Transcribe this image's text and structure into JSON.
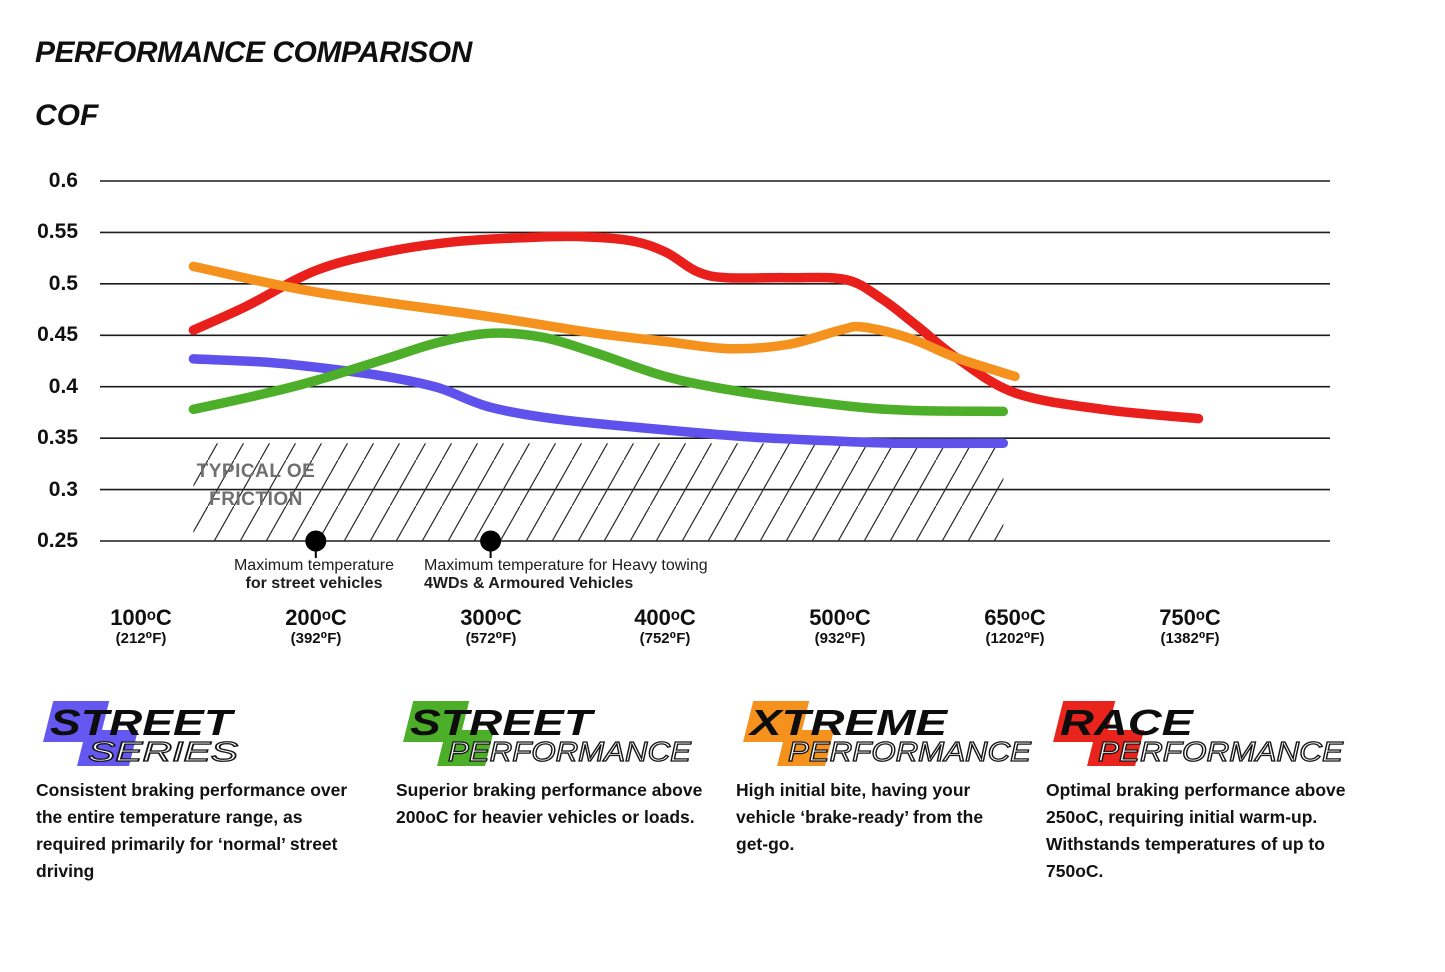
{
  "page": {
    "title": "PERFORMANCE COMPARISON",
    "y_axis_label": "COF"
  },
  "chart_data": {
    "type": "line",
    "title": "PERFORMANCE COMPARISON",
    "ylabel": "COF",
    "xlabel": "",
    "ylim": [
      0.25,
      0.6
    ],
    "grid": "horizontal",
    "legend_position": "bottom",
    "y_ticks": [
      "0.6",
      "0.55",
      "0.5",
      "0.45",
      "0.4",
      "0.35",
      "0.3",
      "0.25"
    ],
    "x_ticks": [
      {
        "temp": 100,
        "c": "100ᵒC",
        "f": "(212⁰F)"
      },
      {
        "temp": 200,
        "c": "200ᵒC",
        "f": "(392⁰F)"
      },
      {
        "temp": 300,
        "c": "300ᵒC",
        "f": "(572⁰F)"
      },
      {
        "temp": 400,
        "c": "400ᵒC",
        "f": "(752⁰F)"
      },
      {
        "temp": 500,
        "c": "500ᵒC",
        "f": "(932⁰F)"
      },
      {
        "temp": 650,
        "c": "650ᵒC",
        "f": "(1202⁰F)"
      },
      {
        "temp": 750,
        "c": "750ᵒC",
        "f": "(1382⁰F)"
      }
    ],
    "series": [
      {
        "id": "race-performance",
        "name": "Race Performance",
        "color": "#e81f1b",
        "points": [
          [
            130,
            0.455
          ],
          [
            160,
            0.478
          ],
          [
            200,
            0.513
          ],
          [
            240,
            0.531
          ],
          [
            280,
            0.541
          ],
          [
            320,
            0.545
          ],
          [
            350,
            0.546
          ],
          [
            380,
            0.542
          ],
          [
            400,
            0.531
          ],
          [
            418,
            0.512
          ],
          [
            435,
            0.506
          ],
          [
            470,
            0.506
          ],
          [
            505,
            0.504
          ],
          [
            535,
            0.486
          ],
          [
            565,
            0.46
          ],
          [
            600,
            0.428
          ],
          [
            650,
            0.394
          ],
          [
            700,
            0.378
          ],
          [
            755,
            0.369
          ]
        ]
      },
      {
        "id": "street-series",
        "name": "Street Series",
        "color": "#5f52ec",
        "points": [
          [
            130,
            0.427
          ],
          [
            170,
            0.424
          ],
          [
            200,
            0.419
          ],
          [
            240,
            0.41
          ],
          [
            270,
            0.399
          ],
          [
            300,
            0.38
          ],
          [
            340,
            0.368
          ],
          [
            400,
            0.358
          ],
          [
            450,
            0.351
          ],
          [
            500,
            0.347
          ],
          [
            550,
            0.345
          ],
          [
            640,
            0.345
          ]
        ]
      },
      {
        "id": "street-performance",
        "name": "Street Performance",
        "color": "#4cae29",
        "points": [
          [
            130,
            0.378
          ],
          [
            170,
            0.393
          ],
          [
            200,
            0.406
          ],
          [
            240,
            0.427
          ],
          [
            270,
            0.443
          ],
          [
            300,
            0.452
          ],
          [
            330,
            0.448
          ],
          [
            360,
            0.433
          ],
          [
            400,
            0.41
          ],
          [
            440,
            0.396
          ],
          [
            500,
            0.382
          ],
          [
            560,
            0.377
          ],
          [
            640,
            0.376
          ]
        ]
      },
      {
        "id": "xtreme-performance",
        "name": "Xtreme Performance",
        "color": "#f5921e",
        "points": [
          [
            130,
            0.517
          ],
          [
            200,
            0.492
          ],
          [
            300,
            0.468
          ],
          [
            360,
            0.452
          ],
          [
            400,
            0.444
          ],
          [
            436,
            0.437
          ],
          [
            470,
            0.441
          ],
          [
            500,
            0.455
          ],
          [
            520,
            0.458
          ],
          [
            560,
            0.447
          ],
          [
            600,
            0.428
          ],
          [
            650,
            0.41
          ]
        ]
      }
    ],
    "oe_band": {
      "label_line1": "TYPICAL OE",
      "label_line2": "FRICTION",
      "cof_from": 0.25,
      "cof_to": 0.345,
      "temp_from": 130,
      "temp_to": 640
    },
    "markers": [
      {
        "temp": 200,
        "cof": 0.25,
        "label_line1": "Maximum temperature",
        "label_line2": "for street vehicles"
      },
      {
        "temp": 300,
        "cof": 0.25,
        "label_line1": "Maximum temperature for Heavy towing",
        "label_line2": "4WDs & Armoured Vehicles"
      }
    ]
  },
  "legend": [
    {
      "word1": "STREET",
      "word2": "SERIES",
      "color": "#6458f0",
      "description": "Consistent braking performance over the entire temperature range, as required primarily for ‘normal’ street driving"
    },
    {
      "word1": "STREET",
      "word2": "PERFORMANCE",
      "color": "#4cae29",
      "description": "Superior braking performance above 200oC for heavier vehicles or loads."
    },
    {
      "word1": "XTREME",
      "word2": "PERFORMANCE",
      "color": "#f5921e",
      "description": "High initial bite, having your vehicle ‘brake-ready’ from the get-go."
    },
    {
      "word1": "RACE",
      "word2": "PERFORMANCE",
      "color": "#e8241c",
      "description": "Optimal braking performance above 250oC, requiring initial warm-up. Withstands temperatures of up to 750oC."
    }
  ]
}
